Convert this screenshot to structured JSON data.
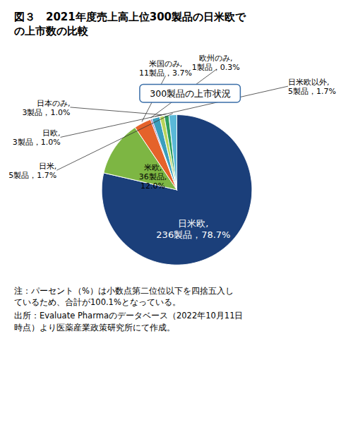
{
  "chart_data": {
    "type": "pie",
    "title": "図３　2021年度売上高上位300製品の日米欧で\nの上市数の比較",
    "annotations": [
      "300製品の上市状況"
    ],
    "categories": [
      "日米欧",
      "米欧",
      "米国のみ",
      "欧州のみ",
      "日米欧以外",
      "日本のみ",
      "日欧",
      "日米"
    ],
    "values": [
      78.7,
      12.0,
      3.7,
      0.3,
      1.7,
      1.0,
      1.0,
      1.7
    ],
    "value_labels": [
      "日米欧,\n236製品，78.7%",
      "米欧,\n36製品,\n12.0%",
      "米国のみ,\n11製品，3.7%",
      "欧州のみ,\n1製品，0.3%",
      "日米欧以外,\n5製品，1.7%",
      "日本のみ,\n3製品，1.0%",
      "日欧,\n3製品，1.0%",
      "日米,\n5製品，1.7%"
    ],
    "colors": [
      "#1B3F7A",
      "#7DB643",
      "#E5622A",
      "#7040A0",
      "#3A9EBD",
      "#B8D45A",
      "#2E9E60",
      "#5AB8D8"
    ],
    "data_labels": true,
    "notes": [
      "注：パーセント（%）は小数点第二位位以下を四捨五入し\nているため、合計が100.1%となっている。",
      "出所：Evaluate Pharmaのデータベース（2022年10月11日\n時点）より医薬産業政策研究所にて作成。"
    ]
  }
}
